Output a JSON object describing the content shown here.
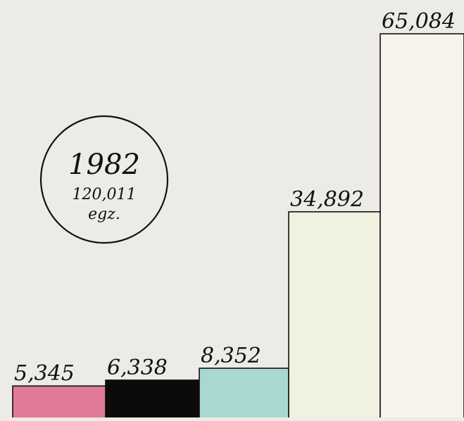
{
  "chart_data": {
    "type": "bar",
    "categories": [
      "",
      "",
      "",
      "",
      ""
    ],
    "values": [
      5345,
      6338,
      8352,
      34892,
      65084
    ],
    "value_labels": [
      "5,345",
      "6,338",
      "8,352",
      "34,892",
      "65,084"
    ],
    "colors": [
      "#e07a98",
      "#0c0a0a",
      "#a9d8d3",
      "#f1f1df",
      "#f5f3ec"
    ],
    "ylim": [
      0,
      65084
    ],
    "grid": false,
    "annotation": {
      "year": "1982",
      "total": "120,011",
      "unit": "egz."
    }
  }
}
